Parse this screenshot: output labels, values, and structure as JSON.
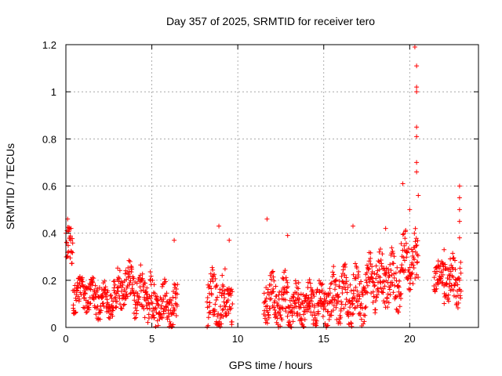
{
  "chart_data": {
    "type": "scatter",
    "title": "Day 357 of 2025, SRMTID for receiver tero",
    "xlabel": "GPS time / hours",
    "ylabel": "SRMTID / TECUs",
    "xlim": [
      0,
      24
    ],
    "ylim": [
      0,
      1.2
    ],
    "xticks": [
      0,
      5,
      10,
      15,
      20
    ],
    "xtick_labels": [
      "0",
      "5",
      "10",
      "15",
      "20"
    ],
    "yticks": [
      0,
      0.2,
      0.4,
      0.6,
      0.8,
      1,
      1.2
    ],
    "ytick_labels": [
      "0",
      "0.2",
      "0.4",
      "0.6",
      "0.8",
      "1",
      "1.2"
    ],
    "grid": true,
    "marker": "+",
    "series": [
      {
        "name": "SRMTID",
        "color": "#ff0000",
        "clusters": [
          {
            "t_start": 0.0,
            "t_end": 0.4,
            "level": 0.34,
            "spread": 0.08
          },
          {
            "t_start": 0.4,
            "t_end": 1.5,
            "level": 0.14,
            "spread": 0.06
          },
          {
            "t_start": 1.5,
            "t_end": 3.0,
            "level": 0.12,
            "spread": 0.07
          },
          {
            "t_start": 3.0,
            "t_end": 4.0,
            "level": 0.18,
            "spread": 0.09
          },
          {
            "t_start": 4.0,
            "t_end": 5.0,
            "level": 0.14,
            "spread": 0.09
          },
          {
            "t_start": 5.0,
            "t_end": 6.5,
            "level": 0.09,
            "spread": 0.08
          },
          {
            "t_start": 8.2,
            "t_end": 9.7,
            "level": 0.11,
            "spread": 0.1
          },
          {
            "t_start": 11.5,
            "t_end": 13.0,
            "level": 0.12,
            "spread": 0.09
          },
          {
            "t_start": 13.0,
            "t_end": 15.5,
            "level": 0.1,
            "spread": 0.08
          },
          {
            "t_start": 15.5,
            "t_end": 17.5,
            "level": 0.13,
            "spread": 0.1
          },
          {
            "t_start": 17.5,
            "t_end": 19.5,
            "level": 0.2,
            "spread": 0.1
          },
          {
            "t_start": 19.5,
            "t_end": 20.5,
            "level": 0.28,
            "spread": 0.1
          },
          {
            "t_start": 21.4,
            "t_end": 22.0,
            "level": 0.22,
            "spread": 0.05
          },
          {
            "t_start": 22.0,
            "t_end": 23.0,
            "level": 0.2,
            "spread": 0.09
          }
        ],
        "peaks": [
          [
            0.1,
            0.46
          ],
          [
            0.3,
            0.42
          ],
          [
            6.3,
            0.37
          ],
          [
            8.9,
            0.43
          ],
          [
            9.5,
            0.37
          ],
          [
            11.7,
            0.46
          ],
          [
            12.9,
            0.39
          ],
          [
            16.7,
            0.43
          ],
          [
            18.6,
            0.42
          ],
          [
            19.6,
            0.61
          ],
          [
            20.0,
            0.5
          ],
          [
            20.3,
            1.19
          ],
          [
            20.4,
            1.11
          ],
          [
            20.4,
            1.02
          ],
          [
            20.4,
            1.0
          ],
          [
            20.4,
            0.85
          ],
          [
            20.4,
            0.81
          ],
          [
            20.4,
            0.7
          ],
          [
            20.4,
            0.66
          ],
          [
            20.5,
            0.56
          ],
          [
            22.0,
            0.33
          ],
          [
            22.9,
            0.6
          ],
          [
            22.9,
            0.55
          ],
          [
            22.9,
            0.5
          ],
          [
            22.9,
            0.45
          ],
          [
            22.9,
            0.38
          ]
        ]
      }
    ]
  }
}
